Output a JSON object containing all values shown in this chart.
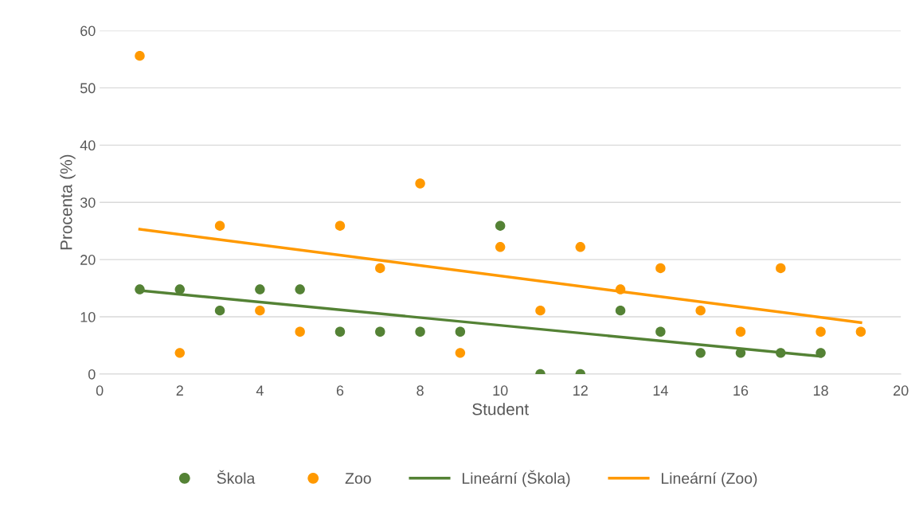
{
  "chart_data": {
    "type": "scatter",
    "xlabel": "Student",
    "ylabel": "Procenta (%)",
    "xlim": [
      0,
      20
    ],
    "xticks": [
      0,
      2,
      4,
      6,
      8,
      10,
      12,
      14,
      16,
      18,
      20
    ],
    "ylim": [
      0,
      60
    ],
    "yticks": [
      0,
      10,
      20,
      30,
      40,
      50,
      60
    ],
    "grid": "y",
    "legend": "bottom",
    "series": [
      {
        "name": "Škola",
        "marker": "circle",
        "color": "#548235",
        "x": [
          1,
          2,
          3,
          4,
          5,
          6,
          7,
          8,
          9,
          10,
          11,
          12,
          13,
          14,
          15,
          16,
          17,
          18
        ],
        "values": [
          14.8,
          14.8,
          11.1,
          14.8,
          14.8,
          7.4,
          7.4,
          7.4,
          7.4,
          25.9,
          0,
          0,
          11.1,
          7.4,
          3.7,
          3.7,
          3.7,
          3.7
        ]
      },
      {
        "name": "Zoo",
        "marker": "circle",
        "color": "#ff9900",
        "x": [
          1,
          2,
          3,
          4,
          5,
          6,
          7,
          8,
          9,
          10,
          11,
          12,
          13,
          14,
          15,
          16,
          17,
          18,
          19
        ],
        "values": [
          55.6,
          3.7,
          25.9,
          11.1,
          7.4,
          25.9,
          18.5,
          33.3,
          3.7,
          22.2,
          11.1,
          22.2,
          14.8,
          18.5,
          11.1,
          7.4,
          18.5,
          7.4,
          7.4
        ]
      },
      {
        "name": "Lineární (Škola)",
        "type": "line",
        "marker": "none",
        "color": "#548235",
        "x": [
          1,
          18
        ],
        "values": [
          14.6,
          3.1
        ]
      },
      {
        "name": "Lineární (Zoo)",
        "type": "line",
        "marker": "none",
        "color": "#ff9900",
        "x": [
          1,
          19
        ],
        "values": [
          25.3,
          9.0
        ]
      }
    ]
  }
}
